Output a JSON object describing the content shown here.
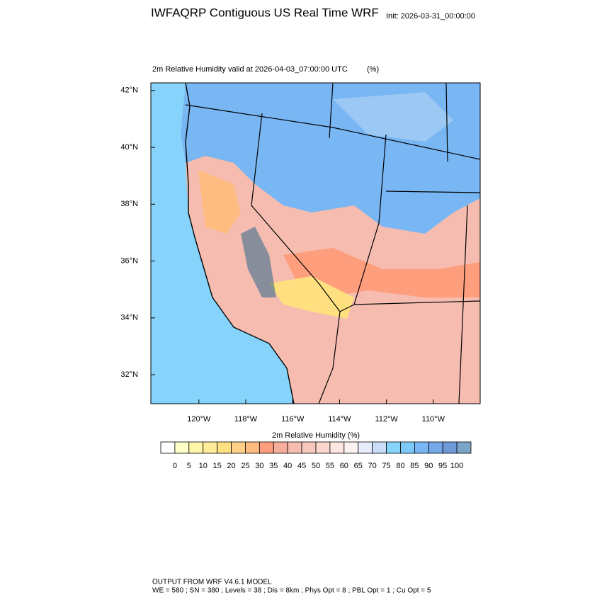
{
  "chart_data": {
    "type": "map",
    "title": "IWFAQRP Contiguous US Real Time WRF",
    "init": "Init: 2026-03-31_00:00:00",
    "subtitle": "2m Relative Humidity valid at 2026-04-03_07:00:00 UTC",
    "units": "(%)",
    "xlim": [
      -122.05,
      -108.0
    ],
    "ylim": [
      30.98,
      42.27
    ],
    "xticks": [
      {
        "value": -120,
        "label": "120°W"
      },
      {
        "value": -118,
        "label": "118°W"
      },
      {
        "value": -116,
        "label": "116°W"
      },
      {
        "value": -114,
        "label": "114°W"
      },
      {
        "value": -112,
        "label": "112°W"
      },
      {
        "value": -110,
        "label": "110°W"
      }
    ],
    "yticks": [
      {
        "value": 42,
        "label": "42°N"
      },
      {
        "value": 40,
        "label": "40°N"
      },
      {
        "value": 38,
        "label": "38°N"
      },
      {
        "value": 36,
        "label": "36°N"
      },
      {
        "value": 34,
        "label": "34°N"
      },
      {
        "value": 32,
        "label": "32°N"
      }
    ],
    "colorbar": {
      "title": "2m Relative Humidity  (%)",
      "levels": [
        0,
        5,
        10,
        15,
        20,
        25,
        30,
        35,
        40,
        45,
        50,
        55,
        60,
        65,
        70,
        75,
        80,
        85,
        90,
        95,
        100
      ],
      "colors": [
        "#ffffff",
        "#ffffc8",
        "#fff5a8",
        "#ffec98",
        "#ffe080",
        "#ffd088",
        "#ffbc80",
        "#ff9e7c",
        "#f7ad9c",
        "#f5bcaf",
        "#f7c8bd",
        "#fad6cc",
        "#fde6e0",
        "#fcf2f2",
        "#e6ecfc",
        "#c9ddf8",
        "#86d4fc",
        "#7dcaf8",
        "#78b6f4",
        "#74a8e6",
        "#6f9ad8",
        "#7aa4c8"
      ]
    },
    "footer": [
      "OUTPUT FROM WRF V4.6.1 MODEL",
      "WE = 580 ; SN = 380 ; Levels = 38 ; Dis = 8km ; Phys Opt = 8 ; PBL Opt = 1 ; Cu Opt = 5"
    ]
  }
}
